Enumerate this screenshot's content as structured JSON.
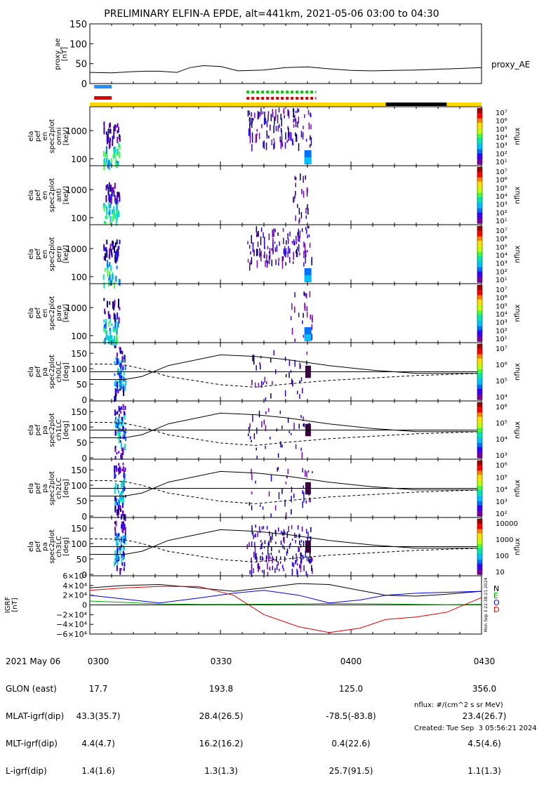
{
  "title": "PRELIMINARY ELFIN-A EPDE, alt=441km, 2021-05-06 03:00 to 04:30",
  "colors": {
    "ae_line": "#000000",
    "ion_bar": "#1e90ff",
    "elec_bar": "#dd0000",
    "dotted_green": "#00cc00",
    "dotted_red": "#dd0000",
    "sunlit_bar": "#ffd700",
    "shadow_bar": "#000000",
    "grf_n": "#000000",
    "grf_e": "#00aa00",
    "grf_o": "#0000dd",
    "grf_d": "#dd0000"
  },
  "panels": {
    "ae": {
      "label": "proxy_ae\n[nT]",
      "series_label": "proxy_AE",
      "yticks": [
        "150",
        "100",
        "50",
        "0"
      ]
    },
    "spec": [
      {
        "label": "ela\npef\nen\nspec2plot\nomni\n[keV]",
        "yticks": [
          "1000",
          "100"
        ],
        "cb_ticks": [
          "10⁷",
          "10⁶",
          "10⁵",
          "10⁴",
          "10³",
          "10²",
          "10¹"
        ],
        "cb_label": "nflux"
      },
      {
        "label": "ela\npef\nen\nspec2plot\nanti\n[keV]",
        "yticks": [
          "1000",
          "100"
        ],
        "cb_ticks": [
          "10⁷",
          "10⁶",
          "10⁵",
          "10⁴",
          "10³",
          "10²",
          "10¹"
        ],
        "cb_label": "nflux"
      },
      {
        "label": "ela\npef\nen\nspec2plot\nperp\n[keV]",
        "yticks": [
          "1000",
          "100"
        ],
        "cb_ticks": [
          "10⁷",
          "10⁶",
          "10⁵",
          "10⁴",
          "10³",
          "10²",
          "10¹"
        ],
        "cb_label": "nflux"
      },
      {
        "label": "ela\npef\nen\nspec2plot\npara\n[keV]",
        "yticks": [
          "1000",
          "100"
        ],
        "cb_ticks": [
          "10⁷",
          "10⁶",
          "10⁵",
          "10⁴",
          "10³",
          "10²",
          "10¹"
        ],
        "cb_label": "nflux"
      }
    ],
    "pa": [
      {
        "label": "ela\npef\npa\nspec2plot\nch0LC\n[deg]",
        "yticks": [
          "150",
          "100",
          "50",
          "0"
        ],
        "cb_ticks": [
          "10⁷",
          "10⁶",
          "10⁵",
          "10⁴"
        ],
        "cb_label": "nflux"
      },
      {
        "label": "ela\npef\npa\nspec2plot\nch1LC\n[deg]",
        "yticks": [
          "150",
          "100",
          "50",
          "0"
        ],
        "cb_ticks": [
          "10⁶",
          "10⁵",
          "10⁴",
          "10³"
        ],
        "cb_label": "nflux"
      },
      {
        "label": "ela\npef\npa\nspec2plot\nch2LC\n[deg]",
        "yticks": [
          "150",
          "100",
          "50",
          "0"
        ],
        "cb_ticks": [
          "10⁶",
          "10⁵",
          "10⁴",
          "10³",
          "10²"
        ],
        "cb_label": "nflux"
      },
      {
        "label": "ela\npef\npa\nspec2plot\nch3LC\n[deg]",
        "yticks": [
          "150",
          "100",
          "50",
          "0"
        ],
        "cb_ticks": [
          "10000",
          "1000",
          "100",
          "10"
        ],
        "cb_label": "nflux"
      }
    ],
    "grf": {
      "label": "IGRF\n[nT]",
      "yticks": [
        "6×10⁴",
        "4×10⁴",
        "2×10⁴",
        "0",
        "−2×10⁴",
        "−4×10⁴",
        "−6×10⁴"
      ],
      "legend": [
        "N",
        "E",
        "O",
        "D"
      ],
      "side_text": "Mon Sep 3 22:38:21 2024"
    }
  },
  "chart_data": {
    "type": "line",
    "x_range_minutes": [
      0,
      90
    ],
    "x_ticks": [
      "0300",
      "0330",
      "0400",
      "0430"
    ],
    "proxy_ae": {
      "ylim": [
        0,
        150
      ],
      "x": [
        0,
        5,
        10,
        13,
        16,
        20,
        23,
        26,
        30,
        34,
        40,
        45,
        50,
        55,
        60,
        65,
        70,
        75,
        80,
        85,
        90
      ],
      "y": [
        28,
        27,
        30,
        31,
        31,
        28,
        40,
        45,
        43,
        32,
        34,
        40,
        42,
        37,
        33,
        32,
        33,
        34,
        36,
        38,
        40
      ]
    },
    "sunlit_minutes": [
      [
        0,
        68
      ],
      [
        82,
        90
      ]
    ],
    "shadow_minutes": [
      [
        68,
        82
      ]
    ],
    "blue_bar_minutes": [
      1,
      5
    ],
    "red_bar_minutes": [
      1,
      5
    ],
    "dotted_bar_minutes": [
      36,
      52
    ],
    "grf": {
      "ylim": [
        -60000,
        60000
      ],
      "x": [
        0,
        8,
        16,
        25,
        33,
        40,
        48,
        55,
        62,
        68,
        75,
        82,
        90
      ],
      "N": [
        35000,
        40000,
        42000,
        35000,
        28000,
        35000,
        44000,
        42000,
        30000,
        20000,
        18000,
        22000,
        28000
      ],
      "E": [
        8000,
        5000,
        2000,
        1000,
        1000,
        1500,
        2000,
        3000,
        2500,
        2000,
        1000,
        500,
        1000
      ],
      "O": [
        20000,
        12000,
        4000,
        14000,
        24000,
        30000,
        20000,
        4000,
        10000,
        20000,
        24000,
        26000,
        28000
      ],
      "D": [
        30000,
        35000,
        38000,
        38000,
        20000,
        -20000,
        -45000,
        -57000,
        -48000,
        -30000,
        -25000,
        -15000,
        15000
      ]
    }
  },
  "info": {
    "row_labels": [
      "2021 May 06",
      "GLON (east)",
      "MLAT-igrf(dip)",
      "MLT-igrf(dip)",
      "L-igrf(dip)"
    ],
    "col_0300": [
      "0300",
      "17.7",
      "43.3(35.7)",
      "4.4(4.7)",
      "1.4(1.6)"
    ],
    "col_0330": [
      "0330",
      "193.8",
      "28.4(26.5)",
      "16.2(16.2)",
      "1.3(1.3)"
    ],
    "col_0400": [
      "0400",
      "125.0",
      "-78.5(-83.8)",
      "0.4(22.6)",
      "25.7(91.5)"
    ],
    "col_0430": [
      "0430",
      "356.0",
      "23.4(26.7)",
      "4.5(4.6)",
      "1.1(1.3)"
    ],
    "footer_1": "nflux: #/(cm^2 s sr MeV)",
    "footer_2": "Created: Tue Sep  3 05:56:21 2024"
  }
}
